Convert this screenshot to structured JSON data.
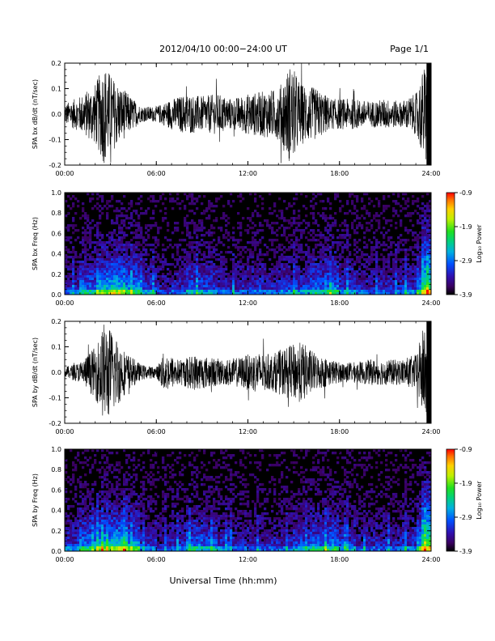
{
  "header": {
    "title": "2012/04/10   00:00−24:00 UT",
    "page": "Page 1/1"
  },
  "xaxis_label": "Universal Time (hh:mm)",
  "x_ticks": [
    "00:00",
    "06:00",
    "12:00",
    "18:00",
    "24:00"
  ],
  "colorbar": {
    "label": "Log₁₀ Power",
    "ticks": [
      "-0.9",
      "-1.9",
      "-2.9",
      "-3.9"
    ]
  },
  "chart_data": [
    {
      "type": "line",
      "ylabel": "SPA bx dB/dt (nT/sec)",
      "y_ticks": [
        "0.2",
        "0.1",
        "0.0",
        "-0.1",
        "-0.2"
      ],
      "ylim": [
        -0.2,
        0.2
      ],
      "xlim_hours": [
        0,
        24
      ],
      "envelope": [
        {
          "hour": 0,
          "amp": 0.04
        },
        {
          "hour": 1,
          "amp": 0.07
        },
        {
          "hour": 2,
          "amp": 0.12
        },
        {
          "hour": 2.6,
          "amp": 0.2
        },
        {
          "hour": 3.2,
          "amp": 0.14
        },
        {
          "hour": 4,
          "amp": 0.09
        },
        {
          "hour": 5,
          "amp": 0.03
        },
        {
          "hour": 6,
          "amp": 0.03
        },
        {
          "hour": 7,
          "amp": 0.06
        },
        {
          "hour": 8,
          "amp": 0.08
        },
        {
          "hour": 9,
          "amp": 0.07
        },
        {
          "hour": 10,
          "amp": 0.08
        },
        {
          "hour": 11,
          "amp": 0.06
        },
        {
          "hour": 12,
          "amp": 0.08
        },
        {
          "hour": 13,
          "amp": 0.09
        },
        {
          "hour": 14,
          "amp": 0.1
        },
        {
          "hour": 14.8,
          "amp": 0.2
        },
        {
          "hour": 15.5,
          "amp": 0.12
        },
        {
          "hour": 16.5,
          "amp": 0.1
        },
        {
          "hour": 17.5,
          "amp": 0.06
        },
        {
          "hour": 19,
          "amp": 0.06
        },
        {
          "hour": 20,
          "amp": 0.05
        },
        {
          "hour": 21,
          "amp": 0.06
        },
        {
          "hour": 22,
          "amp": 0.05
        },
        {
          "hour": 23,
          "amp": 0.08
        },
        {
          "hour": 23.6,
          "amp": 0.2
        },
        {
          "hour": 24,
          "amp": 0.2
        }
      ]
    },
    {
      "type": "heatmap",
      "ylabel": "SPA bx Freq (Hz)",
      "y_ticks": [
        "1.0",
        "0.8",
        "0.6",
        "0.4",
        "0.2",
        "0.0"
      ],
      "ylim": [
        0,
        1.0
      ],
      "zlim": [
        -3.9,
        -0.9
      ],
      "activity": [
        0.3,
        0.5,
        0.7,
        0.75,
        0.6,
        0.4,
        0.25,
        0.3,
        0.45,
        0.4,
        0.3,
        0.3,
        0.35,
        0.3,
        0.35,
        0.4,
        0.5,
        0.55,
        0.4,
        0.3,
        0.3,
        0.3,
        0.35,
        0.6,
        0.9
      ]
    },
    {
      "type": "line",
      "ylabel": "SPA by dB/dt (nT/sec)",
      "y_ticks": [
        "0.2",
        "0.1",
        "0.0",
        "-0.1",
        "-0.2"
      ],
      "ylim": [
        -0.2,
        0.2
      ],
      "xlim_hours": [
        0,
        24
      ],
      "envelope": [
        {
          "hour": 0,
          "amp": 0.02
        },
        {
          "hour": 1,
          "amp": 0.04
        },
        {
          "hour": 2,
          "amp": 0.1
        },
        {
          "hour": 2.6,
          "amp": 0.2
        },
        {
          "hour": 3.3,
          "amp": 0.15
        },
        {
          "hour": 4,
          "amp": 0.08
        },
        {
          "hour": 5,
          "amp": 0.03
        },
        {
          "hour": 6,
          "amp": 0.02
        },
        {
          "hour": 6.5,
          "amp": 0.08
        },
        {
          "hour": 7.5,
          "amp": 0.05
        },
        {
          "hour": 8.5,
          "amp": 0.07
        },
        {
          "hour": 9.5,
          "amp": 0.06
        },
        {
          "hour": 10.5,
          "amp": 0.05
        },
        {
          "hour": 11.5,
          "amp": 0.06
        },
        {
          "hour": 12.5,
          "amp": 0.08
        },
        {
          "hour": 13.5,
          "amp": 0.07
        },
        {
          "hour": 14.5,
          "amp": 0.1
        },
        {
          "hour": 15.5,
          "amp": 0.12
        },
        {
          "hour": 16.5,
          "amp": 0.07
        },
        {
          "hour": 18,
          "amp": 0.04
        },
        {
          "hour": 19,
          "amp": 0.04
        },
        {
          "hour": 20,
          "amp": 0.05
        },
        {
          "hour": 21,
          "amp": 0.05
        },
        {
          "hour": 22,
          "amp": 0.05
        },
        {
          "hour": 23,
          "amp": 0.07
        },
        {
          "hour": 23.6,
          "amp": 0.2
        },
        {
          "hour": 24,
          "amp": 0.2
        }
      ]
    },
    {
      "type": "heatmap",
      "ylabel": "SPA by Freq (Hz)",
      "y_ticks": [
        "1.0",
        "0.8",
        "0.6",
        "0.4",
        "0.2",
        "0.0"
      ],
      "ylim": [
        0,
        1.0
      ],
      "zlim": [
        -3.9,
        -0.9
      ],
      "activity": [
        0.35,
        0.55,
        0.7,
        0.75,
        0.6,
        0.35,
        0.25,
        0.35,
        0.5,
        0.45,
        0.35,
        0.3,
        0.3,
        0.3,
        0.3,
        0.4,
        0.5,
        0.55,
        0.4,
        0.3,
        0.3,
        0.3,
        0.35,
        0.6,
        0.9
      ]
    }
  ]
}
